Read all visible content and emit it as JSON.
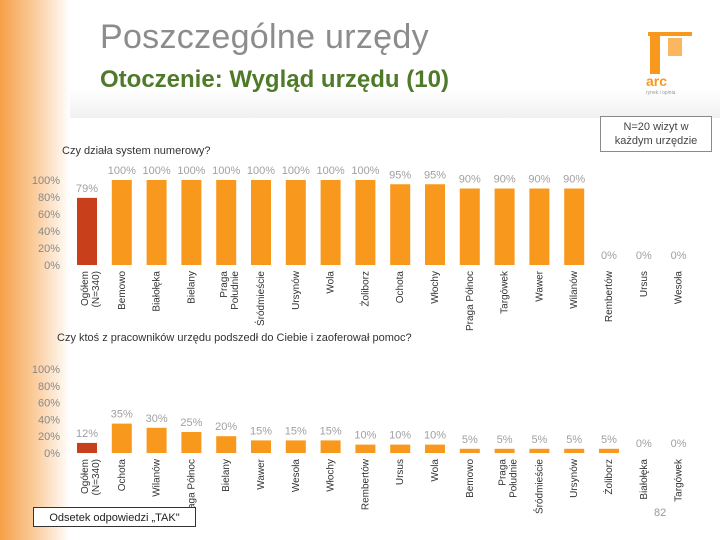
{
  "header": {
    "title": "Poszczególne urzędy",
    "subtitle": "Otoczenie: Wygląd urzędu (10)",
    "logo_text": "arc",
    "logo_tagline": "rynek i opinia"
  },
  "note": {
    "line1": "N=20 wizyt w",
    "line2": "każdym urzędzie"
  },
  "footnote": "Odsetek odpowiedzi „TAK\"",
  "page_number": "82",
  "colors": {
    "bar": "#f8981d",
    "highlight": "#c7401b",
    "accent_stripe": "#f6a047",
    "subtitle": "#4f7a2a"
  },
  "chart_data": [
    {
      "type": "bar",
      "title": "Czy działa system numerowy?",
      "categories": [
        "Ogółem (N=340)",
        "Bemowo",
        "Białołęka",
        "Bielany",
        "Praga Południe",
        "Śródmieście",
        "Ursynów",
        "Wola",
        "Żoliborz",
        "Ochota",
        "Włochy",
        "Praga Północ",
        "Targówek",
        "Wawer",
        "Wilanów",
        "Rembertów",
        "Ursus",
        "Wesoła"
      ],
      "values": [
        79,
        100,
        100,
        100,
        100,
        100,
        100,
        100,
        100,
        95,
        95,
        90,
        90,
        90,
        90,
        0,
        0,
        0
      ],
      "value_labels": [
        "79%",
        "100%",
        "100%",
        "100%",
        "100%",
        "100%",
        "100%",
        "100%",
        "100%",
        "95%",
        "95%",
        "90%",
        "90%",
        "90%",
        "90%",
        "0%",
        "0%",
        "0%"
      ],
      "highlight_index": 0,
      "yticks": [
        "0%",
        "20%",
        "40%",
        "60%",
        "80%",
        "100%"
      ],
      "ylim": [
        0,
        100
      ],
      "grid": false
    },
    {
      "type": "bar",
      "title": "Czy ktoś z pracowników urzędu podszedł do Ciebie i zaoferował pomoc?",
      "categories": [
        "Ogółem (N=340)",
        "Ochota",
        "Wilanów",
        "Praga Północ",
        "Bielany",
        "Wawer",
        "Wesoła",
        "Włochy",
        "Rembertów",
        "Ursus",
        "Wola",
        "Bemowo",
        "Praga Południe",
        "Śródmieście",
        "Ursynów",
        "Żoliborz",
        "Białołęka",
        "Targówek"
      ],
      "values": [
        12,
        35,
        30,
        25,
        20,
        15,
        15,
        15,
        10,
        10,
        10,
        5,
        5,
        5,
        5,
        5,
        0,
        0
      ],
      "value_labels": [
        "12%",
        "35%",
        "30%",
        "25%",
        "20%",
        "15%",
        "15%",
        "15%",
        "10%",
        "10%",
        "10%",
        "5%",
        "5%",
        "5%",
        "5%",
        "5%",
        "0%",
        "0%"
      ],
      "highlight_index": 0,
      "yticks": [
        "0%",
        "20%",
        "40%",
        "60%",
        "80%",
        "100%"
      ],
      "ylim": [
        0,
        100
      ],
      "grid": false
    }
  ]
}
